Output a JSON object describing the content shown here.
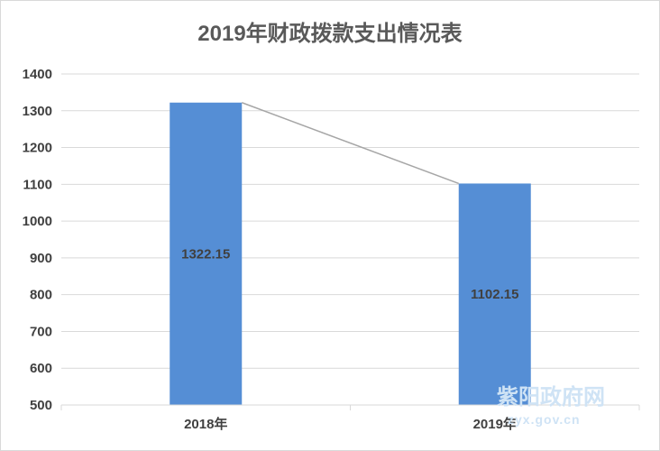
{
  "chart_data": {
    "type": "bar",
    "title": "2019年财政拨款支出情况表",
    "categories": [
      "2018年",
      "2019年"
    ],
    "values": [
      1322.15,
      1102.15
    ],
    "data_labels": [
      "1322.15",
      "1102.15"
    ],
    "ylim": [
      500,
      1400
    ],
    "yticks": [
      500,
      600,
      700,
      800,
      900,
      1000,
      1100,
      1200,
      1300,
      1400
    ],
    "grid": true,
    "connector_line": true,
    "colors": {
      "bar": "#558ed5",
      "grid": "#d9d9d9",
      "connector": "#a6a6a6",
      "text": "#404040"
    }
  },
  "watermark": {
    "name": "紫阳政府网",
    "url": "zyx.gov.cn"
  }
}
